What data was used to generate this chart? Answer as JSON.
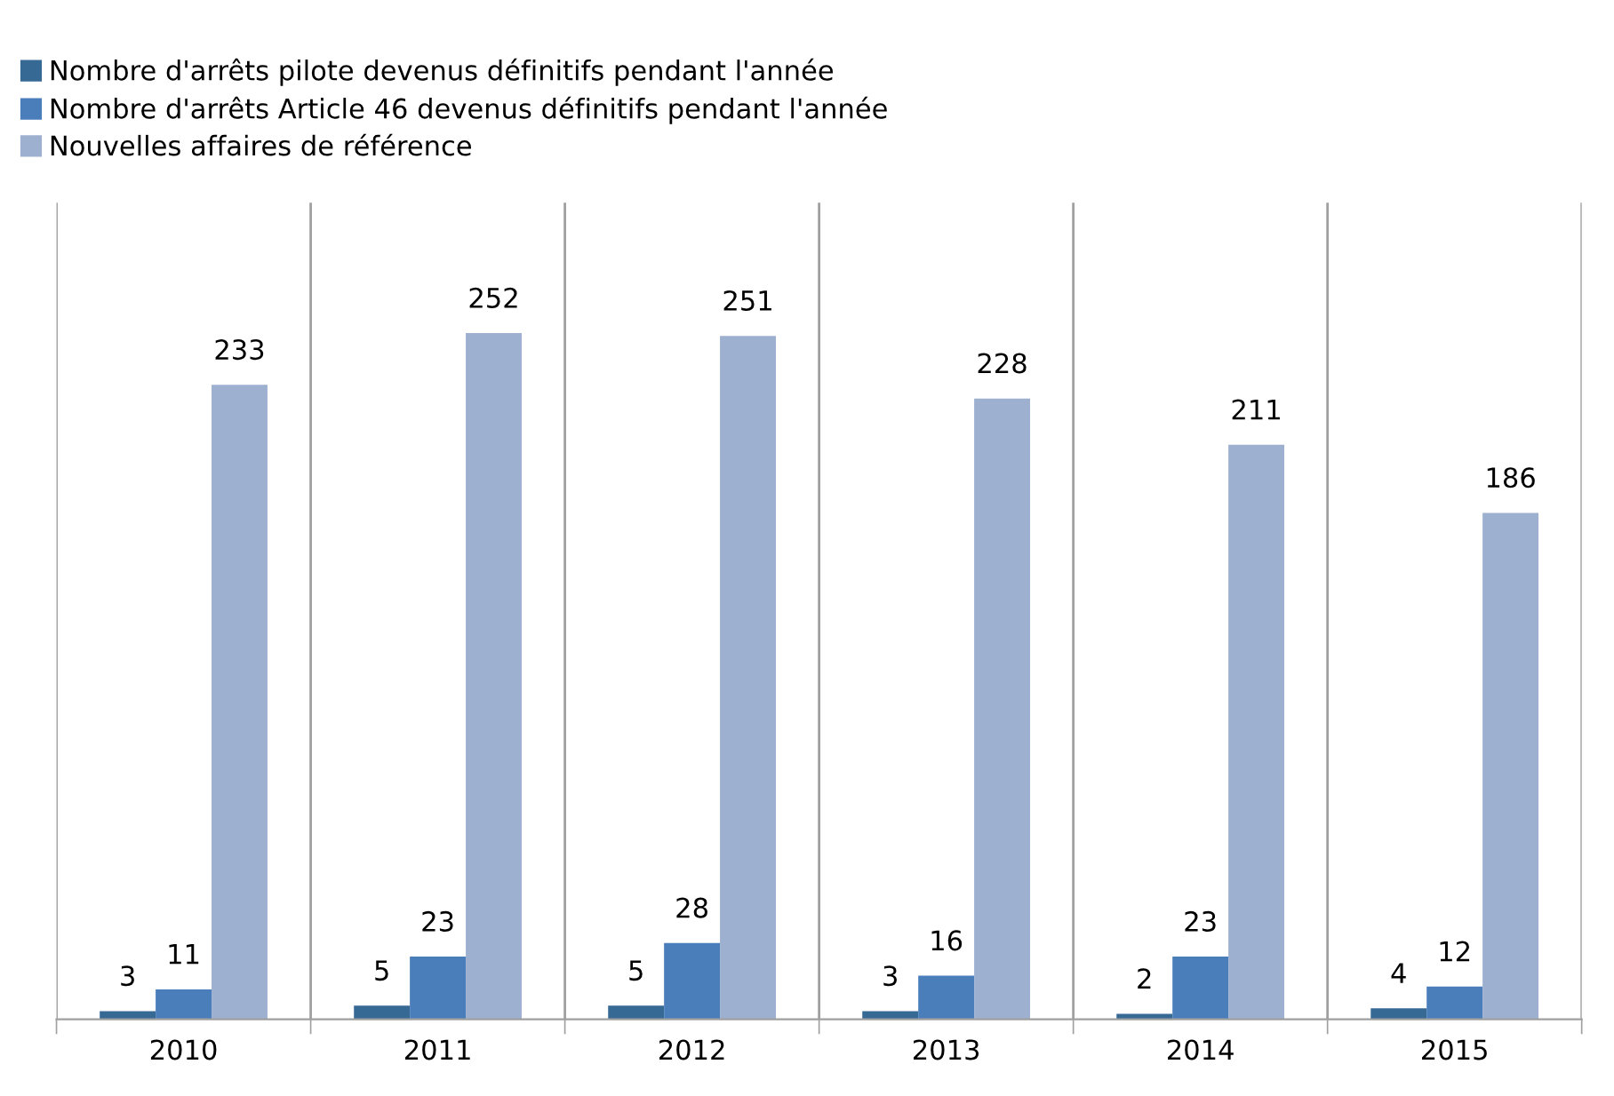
{
  "chart_data": {
    "type": "bar",
    "categories": [
      "2010",
      "2011",
      "2012",
      "2013",
      "2014",
      "2015"
    ],
    "series": [
      {
        "name": "Nombre d'arrêts pilote devenus définitifs pendant l'année",
        "color": "#376995",
        "values": [
          3,
          5,
          5,
          3,
          2,
          4
        ]
      },
      {
        "name": "Nombre d'arrêts Article 46 devenus définitifs pendant l'année",
        "color": "#4a7ebb",
        "values": [
          11,
          23,
          28,
          16,
          23,
          12
        ]
      },
      {
        "name": "Nouvelles affaires de référence",
        "color": "#9db0d0",
        "values": [
          233,
          252,
          251,
          228,
          211,
          186
        ]
      }
    ],
    "data_labels": true,
    "legend": "top left",
    "grid": "x",
    "tick_labels": "x"
  }
}
